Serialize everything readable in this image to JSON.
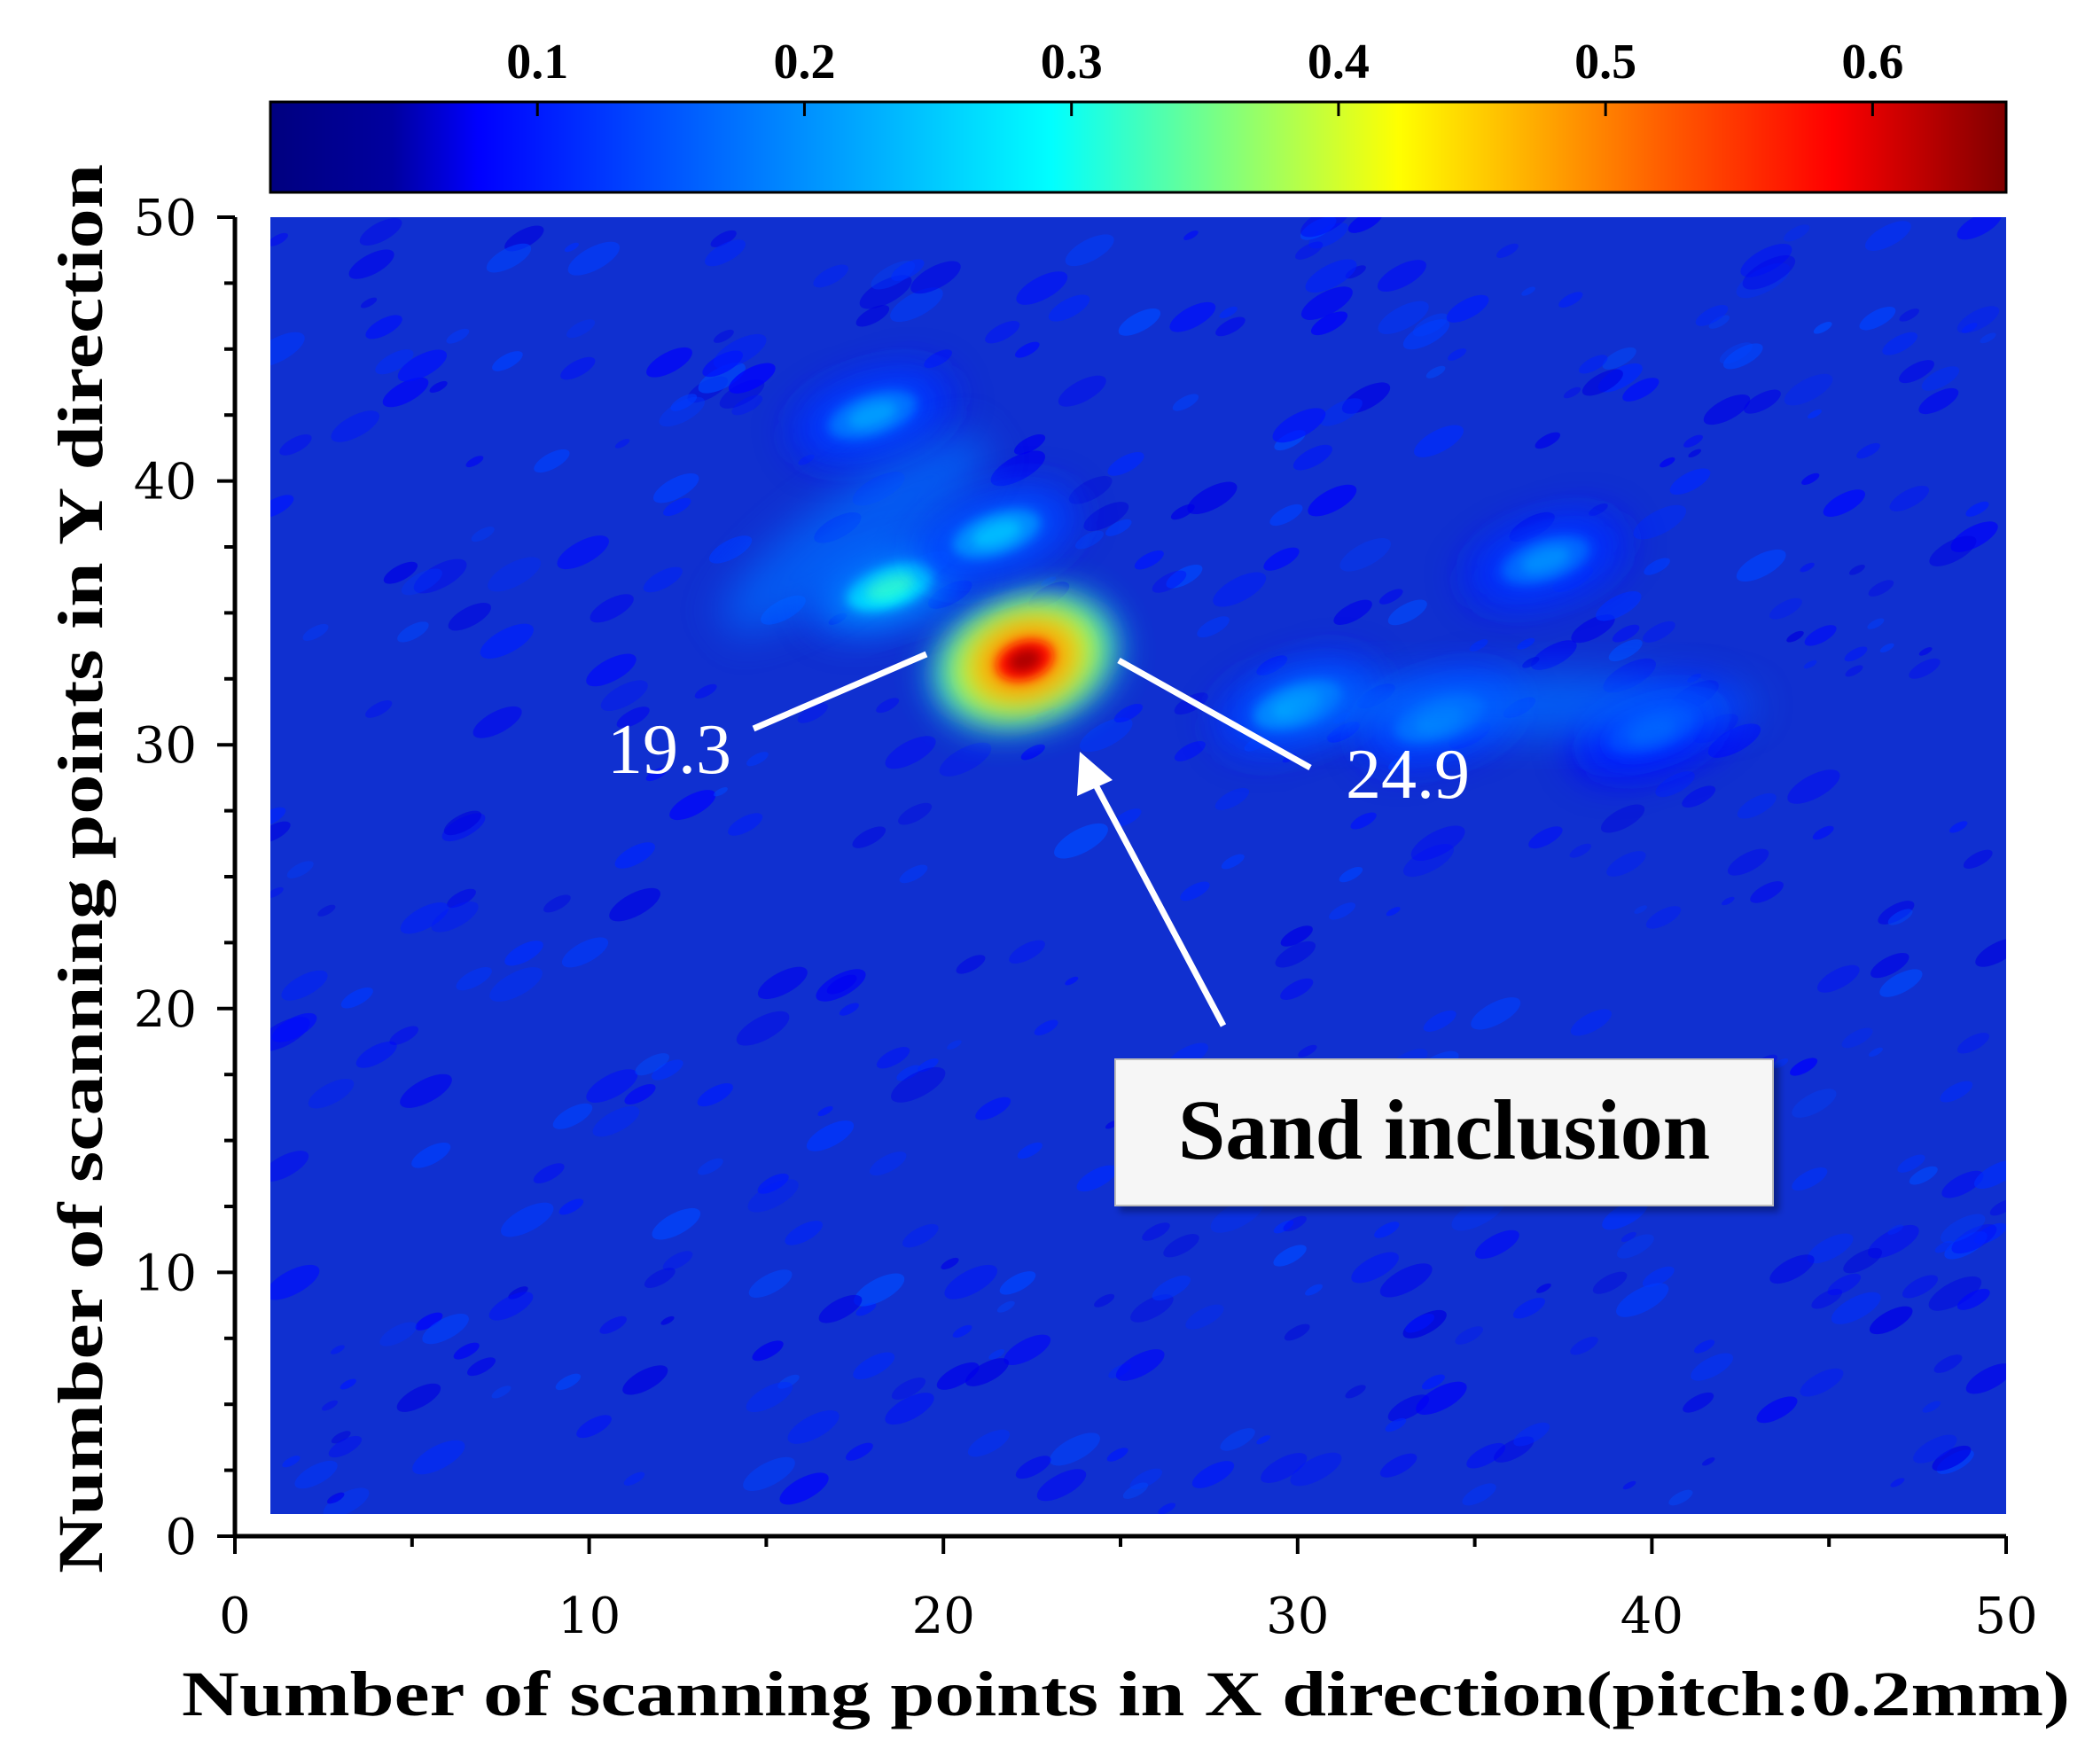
{
  "chart_data": {
    "type": "heatmap",
    "xlabel": "Number of scanning points in X direction(pitch:0.2mm)",
    "ylabel": "Number of scanning points in Y direction",
    "xlim": [
      0,
      50
    ],
    "ylim": [
      0,
      50
    ],
    "x_ticks": [
      "0",
      "10",
      "20",
      "30",
      "40",
      "50"
    ],
    "y_ticks": [
      "0",
      "10",
      "20",
      "30",
      "40",
      "50"
    ],
    "colorbar": {
      "range": [
        0.0,
        0.65
      ],
      "ticks": [
        "0.1",
        "0.2",
        "0.3",
        "0.4",
        "0.5",
        "0.6"
      ],
      "colormap": "jet",
      "placement": "top"
    },
    "background_value": 0.06,
    "features": [
      {
        "x": 22.3,
        "y": 33.2,
        "peak": 0.62,
        "description": "core"
      },
      {
        "x": 18.5,
        "y": 36.0,
        "peak": 0.27
      },
      {
        "x": 21.5,
        "y": 38.0,
        "peak": 0.2
      },
      {
        "x": 18.0,
        "y": 42.5,
        "peak": 0.18
      },
      {
        "x": 30.0,
        "y": 31.5,
        "peak": 0.2
      },
      {
        "x": 34.0,
        "y": 31.0,
        "peak": 0.18
      },
      {
        "x": 37.0,
        "y": 37.0,
        "peak": 0.17
      },
      {
        "x": 40.0,
        "y": 30.5,
        "peak": 0.14
      }
    ],
    "annotations": [
      {
        "text": "19.3",
        "x": 19.3
      },
      {
        "text": "24.9",
        "x": 24.9
      }
    ],
    "callout": {
      "text": "Sand inclusion"
    },
    "colors": {
      "jet_stops": [
        "#00007f",
        "#0000ff",
        "#007fff",
        "#00ffff",
        "#7fff7f",
        "#ffff00",
        "#ff7f00",
        "#ff0000",
        "#7f0000"
      ],
      "background": "#1030d0",
      "annotation": "#ffffff"
    }
  }
}
